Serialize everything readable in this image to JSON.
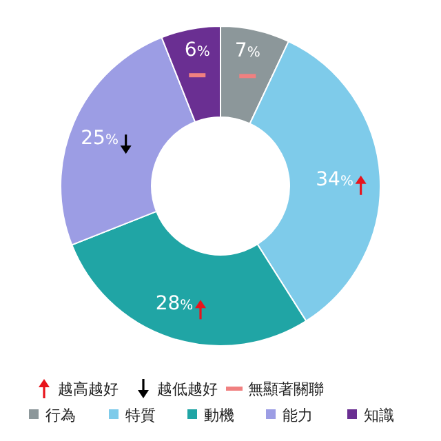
{
  "chart_data": {
    "type": "donut",
    "categories": [
      "行為",
      "特質",
      "動機",
      "能力",
      "知識"
    ],
    "values": [
      7,
      34,
      28,
      25,
      6
    ],
    "colors": [
      "#8c979a",
      "#7ecbea",
      "#20a5a5",
      "#9c9de4",
      "#6a2f92"
    ],
    "value_labels": [
      "7%",
      "34%",
      "28%",
      "25%",
      "6%"
    ],
    "legend": "bottom",
    "annotations": [
      "越高越好",
      "越低越好",
      "無顯著關聯"
    ]
  }
}
